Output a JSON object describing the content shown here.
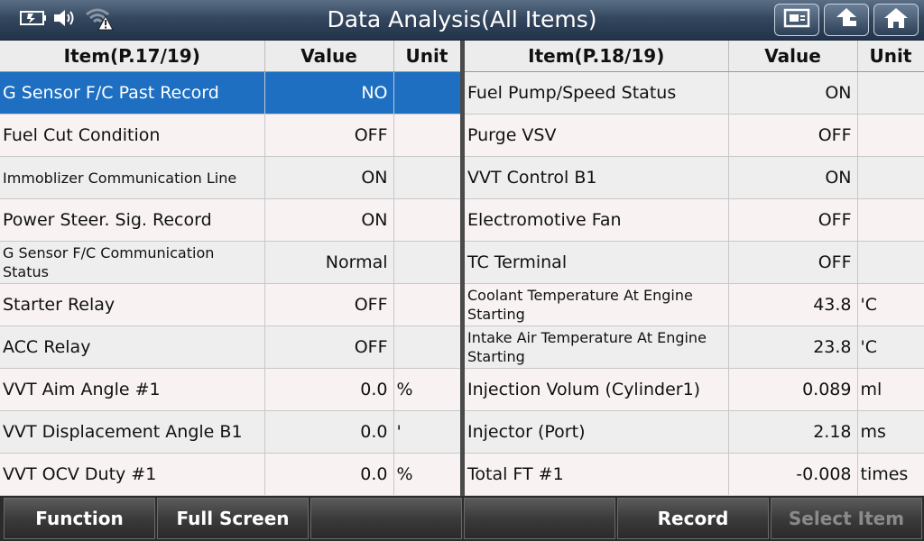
{
  "title": "Data Analysis(All Items)",
  "status_icons": [
    "battery-icon",
    "speaker-icon",
    "wifi-warning-icon"
  ],
  "nav_buttons": [
    "screenshot-icon",
    "back-icon",
    "home-icon"
  ],
  "left_table": {
    "headers": {
      "item": "Item(P.17/19)",
      "value": "Value",
      "unit": "Unit"
    },
    "rows": [
      {
        "item": "G Sensor F/C Past Record",
        "value": "NO",
        "unit": ""
      },
      {
        "item": "Fuel Cut Condition",
        "value": "OFF",
        "unit": ""
      },
      {
        "item": "Immoblizer Communication Line",
        "value": "ON",
        "unit": ""
      },
      {
        "item": "Power Steer. Sig. Record",
        "value": "ON",
        "unit": ""
      },
      {
        "item": "G Sensor F/C Communication Status",
        "value": "Normal",
        "unit": ""
      },
      {
        "item": "Starter Relay",
        "value": "OFF",
        "unit": ""
      },
      {
        "item": "ACC Relay",
        "value": "OFF",
        "unit": ""
      },
      {
        "item": "VVT Aim Angle #1",
        "value": "0.0",
        "unit": "%"
      },
      {
        "item": "VVT Displacement Angle B1",
        "value": "0.0",
        "unit": "'"
      },
      {
        "item": "VVT OCV Duty #1",
        "value": "0.0",
        "unit": "%"
      }
    ]
  },
  "right_table": {
    "headers": {
      "item": "Item(P.18/19)",
      "value": "Value",
      "unit": "Unit"
    },
    "rows": [
      {
        "item": "Fuel Pump/Speed Status",
        "value": "ON",
        "unit": ""
      },
      {
        "item": "Purge VSV",
        "value": "OFF",
        "unit": ""
      },
      {
        "item": "VVT Control B1",
        "value": "ON",
        "unit": ""
      },
      {
        "item": "Electromotive Fan",
        "value": "OFF",
        "unit": ""
      },
      {
        "item": "TC Terminal",
        "value": "OFF",
        "unit": ""
      },
      {
        "item": "Coolant Temperature At Engine Starting",
        "value": "43.8",
        "unit": "'C"
      },
      {
        "item": "Intake Air Temperature At Engine Starting",
        "value": "23.8",
        "unit": "'C"
      },
      {
        "item": "Injection Volum (Cylinder1)",
        "value": "0.089",
        "unit": "ml"
      },
      {
        "item": "Injector (Port)",
        "value": "2.18",
        "unit": "ms"
      },
      {
        "item": "Total FT #1",
        "value": "-0.008",
        "unit": "times"
      }
    ]
  },
  "bottom_buttons": [
    "Function",
    "Full Screen",
    "",
    "",
    "Record",
    "Select Item"
  ],
  "colors": {
    "selected_row": "#1e6fc1",
    "title_bar": "#34475e"
  }
}
